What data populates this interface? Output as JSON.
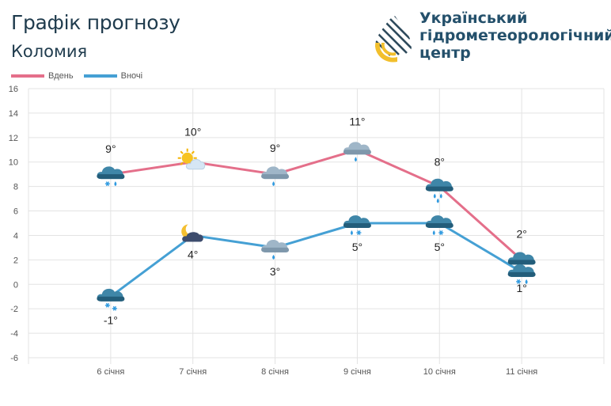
{
  "header": {
    "title": "Графік прогнозу",
    "location": "Коломия",
    "org_lines": [
      "Український",
      "гідрометеорологічний",
      "центр"
    ]
  },
  "legend": [
    {
      "label": "Вдень",
      "color": "#e46f8a"
    },
    {
      "label": "Вночі",
      "color": "#45a0d4"
    }
  ],
  "chart_data": {
    "type": "line",
    "categories": [
      "6 січня",
      "7 січня",
      "8 січня",
      "9 січня",
      "10 січня",
      "11 січня"
    ],
    "series": [
      {
        "name": "Вдень",
        "values": [
          9,
          10,
          9,
          11,
          8,
          2
        ],
        "labels": [
          "9°",
          "10°",
          "9°",
          "11°",
          "8°",
          "2°"
        ],
        "icons": [
          "cloud-snow-rain-icon",
          "sun-cloud-icon",
          "cloud-rain-icon",
          "cloud-rain-icon",
          "cloud-heavy-rain-icon",
          "cloud-snow-rain-icon"
        ]
      },
      {
        "name": "Вночі",
        "values": [
          -1,
          4,
          3,
          5,
          5,
          1
        ],
        "labels": [
          "-1°",
          "4°",
          "3°",
          "5°",
          "5°",
          "1°"
        ],
        "icons": [
          "cloud-snow-icon",
          "moon-cloud-icon",
          "cloud-rain-icon",
          "cloud-rain-snow-icon",
          "cloud-rain-snow-icon",
          "cloud-snow-rain-icon"
        ]
      }
    ],
    "ylim": [
      -6,
      16
    ],
    "yticks": [
      16,
      14,
      12,
      10,
      8,
      6,
      4,
      2,
      0,
      -2,
      -4,
      -6
    ],
    "ytick_labels": [
      "16",
      "14",
      "12",
      "10",
      "8",
      "6",
      "4",
      "2",
      "0",
      "-2",
      "-4",
      "-6"
    ],
    "grid": true
  }
}
